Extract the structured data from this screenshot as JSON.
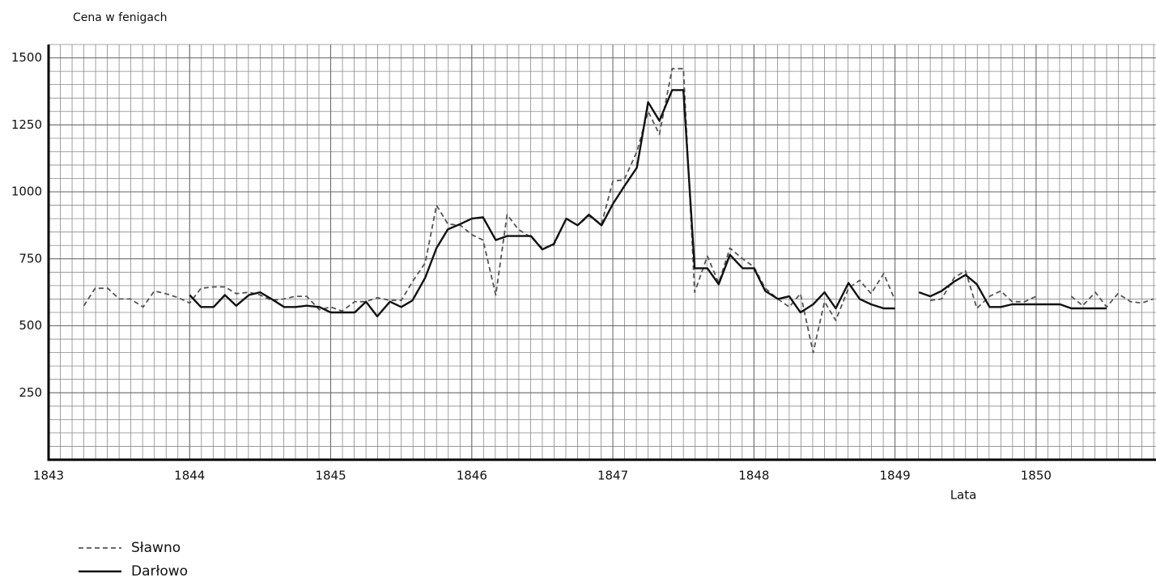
{
  "chart_data": {
    "type": "line",
    "ylabel": "Cena w fenigach",
    "xlabel": "Lata",
    "x": [
      1843.25,
      1843.33,
      1843.42,
      1843.5,
      1843.58,
      1843.67,
      1843.75,
      1843.83,
      1843.92,
      1844,
      1844.08,
      1844.17,
      1844.25,
      1844.33,
      1844.42,
      1844.5,
      1844.58,
      1844.67,
      1844.75,
      1844.83,
      1844.92,
      1845,
      1845.08,
      1845.17,
      1845.25,
      1845.33,
      1845.42,
      1845.5,
      1845.58,
      1845.67,
      1845.75,
      1845.83,
      1845.92,
      1846,
      1846.08,
      1846.17,
      1846.25,
      1846.33,
      1846.42,
      1846.5,
      1846.58,
      1846.67,
      1846.75,
      1846.83,
      1846.92,
      1847,
      1847.08,
      1847.17,
      1847.25,
      1847.33,
      1847.42,
      1847.5,
      1847.58,
      1847.67,
      1847.75,
      1847.83,
      1847.92,
      1848,
      1848.08,
      1848.17,
      1848.25,
      1848.33,
      1848.42,
      1848.5,
      1848.58,
      1848.67,
      1848.75,
      1848.83,
      1848.92,
      1849,
      1849.08,
      1849.17,
      1849.25,
      1849.33,
      1849.42,
      1849.5,
      1849.58,
      1849.67,
      1849.75,
      1849.83,
      1849.92,
      1850,
      1850.08,
      1850.17,
      1850.25,
      1850.33,
      1850.42,
      1850.5,
      1850.58,
      1850.67,
      1850.75,
      1850.83
    ],
    "series": [
      {
        "name": "Sławno",
        "color": "#555555",
        "line_style": "dashed",
        "values": [
          575,
          640,
          640,
          600,
          600,
          570,
          630,
          620,
          605,
          585,
          640,
          645,
          645,
          620,
          625,
          615,
          595,
          600,
          610,
          610,
          560,
          570,
          555,
          590,
          590,
          605,
          595,
          595,
          665,
          735,
          950,
          880,
          875,
          840,
          820,
          615,
          915,
          860,
          830,
          790,
          800,
          900,
          875,
          910,
          880,
          1040,
          1045,
          1150,
          1300,
          1215,
          1460,
          1460,
          625,
          760,
          660,
          790,
          750,
          720,
          640,
          600,
          570,
          620,
          400,
          590,
          520,
          640,
          670,
          620,
          695,
          595,
          null,
          null,
          595,
          600,
          680,
          705,
          565,
          610,
          630,
          590,
          590,
          610,
          null,
          null,
          610,
          575,
          625,
          570,
          620,
          590,
          585,
          600
        ]
      },
      {
        "name": "Darłowo",
        "color": "#111111",
        "line_style": "solid",
        "values": [
          null,
          null,
          null,
          null,
          null,
          null,
          null,
          null,
          null,
          615,
          570,
          570,
          615,
          575,
          615,
          625,
          600,
          570,
          570,
          575,
          570,
          550,
          550,
          550,
          590,
          535,
          590,
          570,
          595,
          680,
          790,
          860,
          880,
          900,
          905,
          820,
          835,
          835,
          835,
          785,
          805,
          900,
          875,
          915,
          875,
          955,
          1020,
          1090,
          1335,
          1265,
          1380,
          1380,
          715,
          715,
          655,
          765,
          715,
          715,
          630,
          600,
          610,
          550,
          580,
          625,
          565,
          660,
          600,
          580,
          565,
          565,
          null,
          625,
          610,
          630,
          665,
          690,
          655,
          570,
          570,
          580,
          580,
          580,
          580,
          580,
          565,
          565,
          565,
          565,
          null,
          null,
          null,
          null
        ]
      }
    ],
    "xlim": [
      1843,
      1850.85
    ],
    "xticks": [
      1843,
      1844,
      1845,
      1846,
      1847,
      1848,
      1849,
      1850
    ],
    "ylim": [
      0,
      1550
    ],
    "yticks": [
      250,
      500,
      750,
      1000,
      1250,
      1500
    ],
    "grid": true,
    "x_minor_per_tick": 12,
    "y_minor_per_tick": 5,
    "legend": "bottom-left"
  }
}
